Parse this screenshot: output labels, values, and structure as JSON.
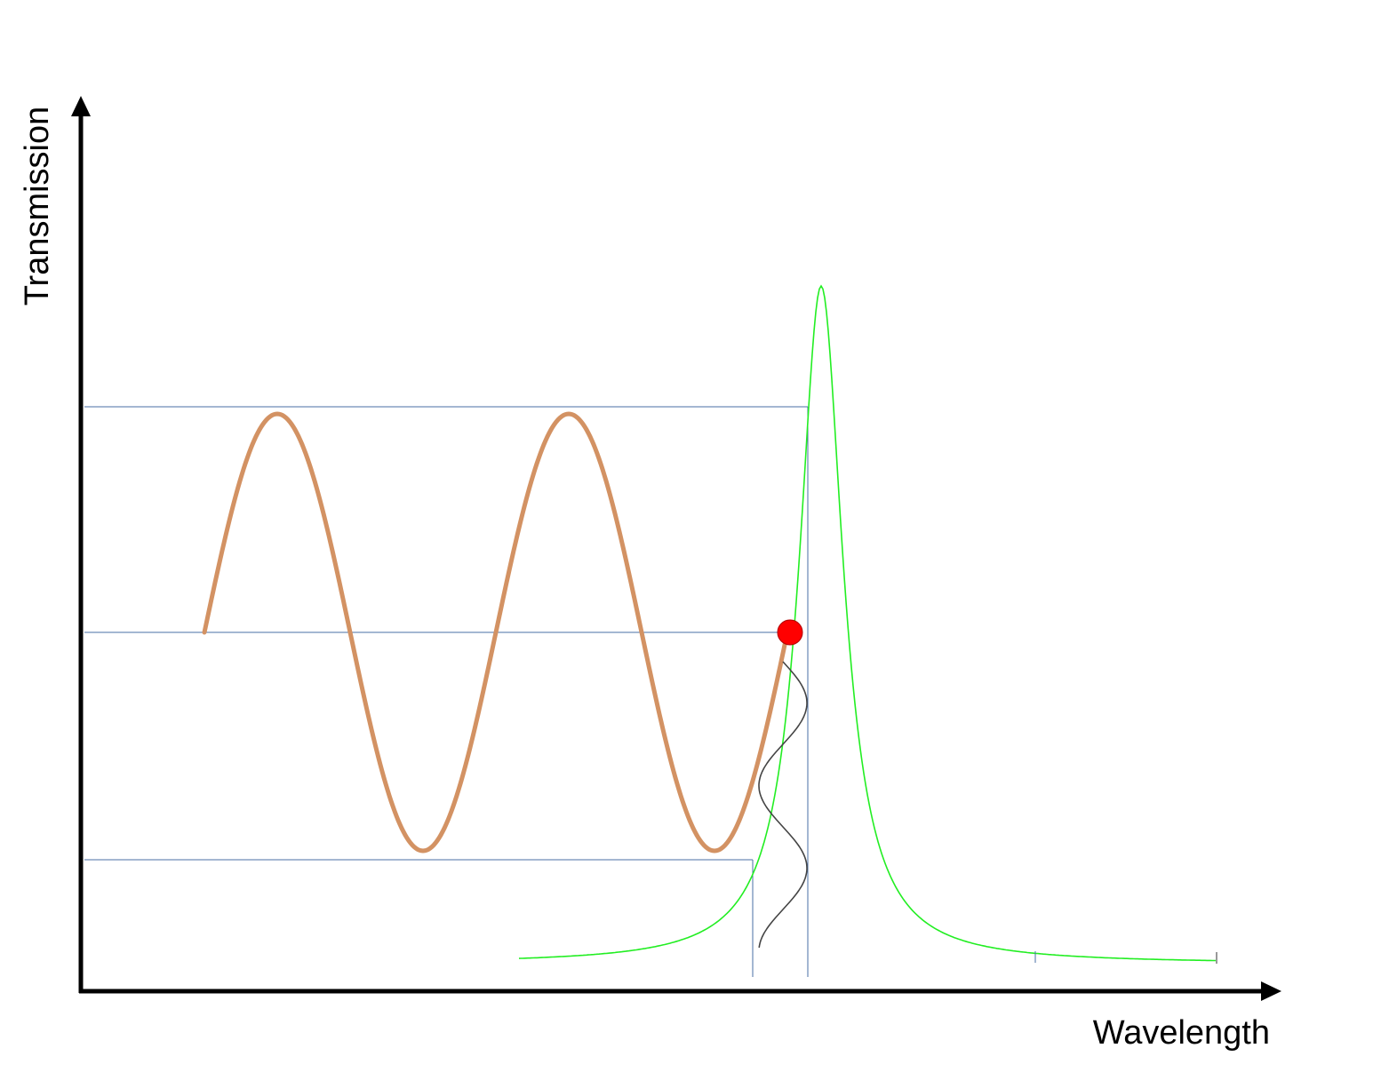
{
  "diagram": {
    "x_axis_label": "Wavelength",
    "y_axis_label": "Transmission",
    "colors": {
      "axes": "#000000",
      "guide_lines": "#4a6fa5",
      "transmission_curve": "#d39263",
      "resonance_peak": "#22ee22",
      "operating_point": "#ff0000",
      "modulation_signal": "#444444"
    }
  }
}
